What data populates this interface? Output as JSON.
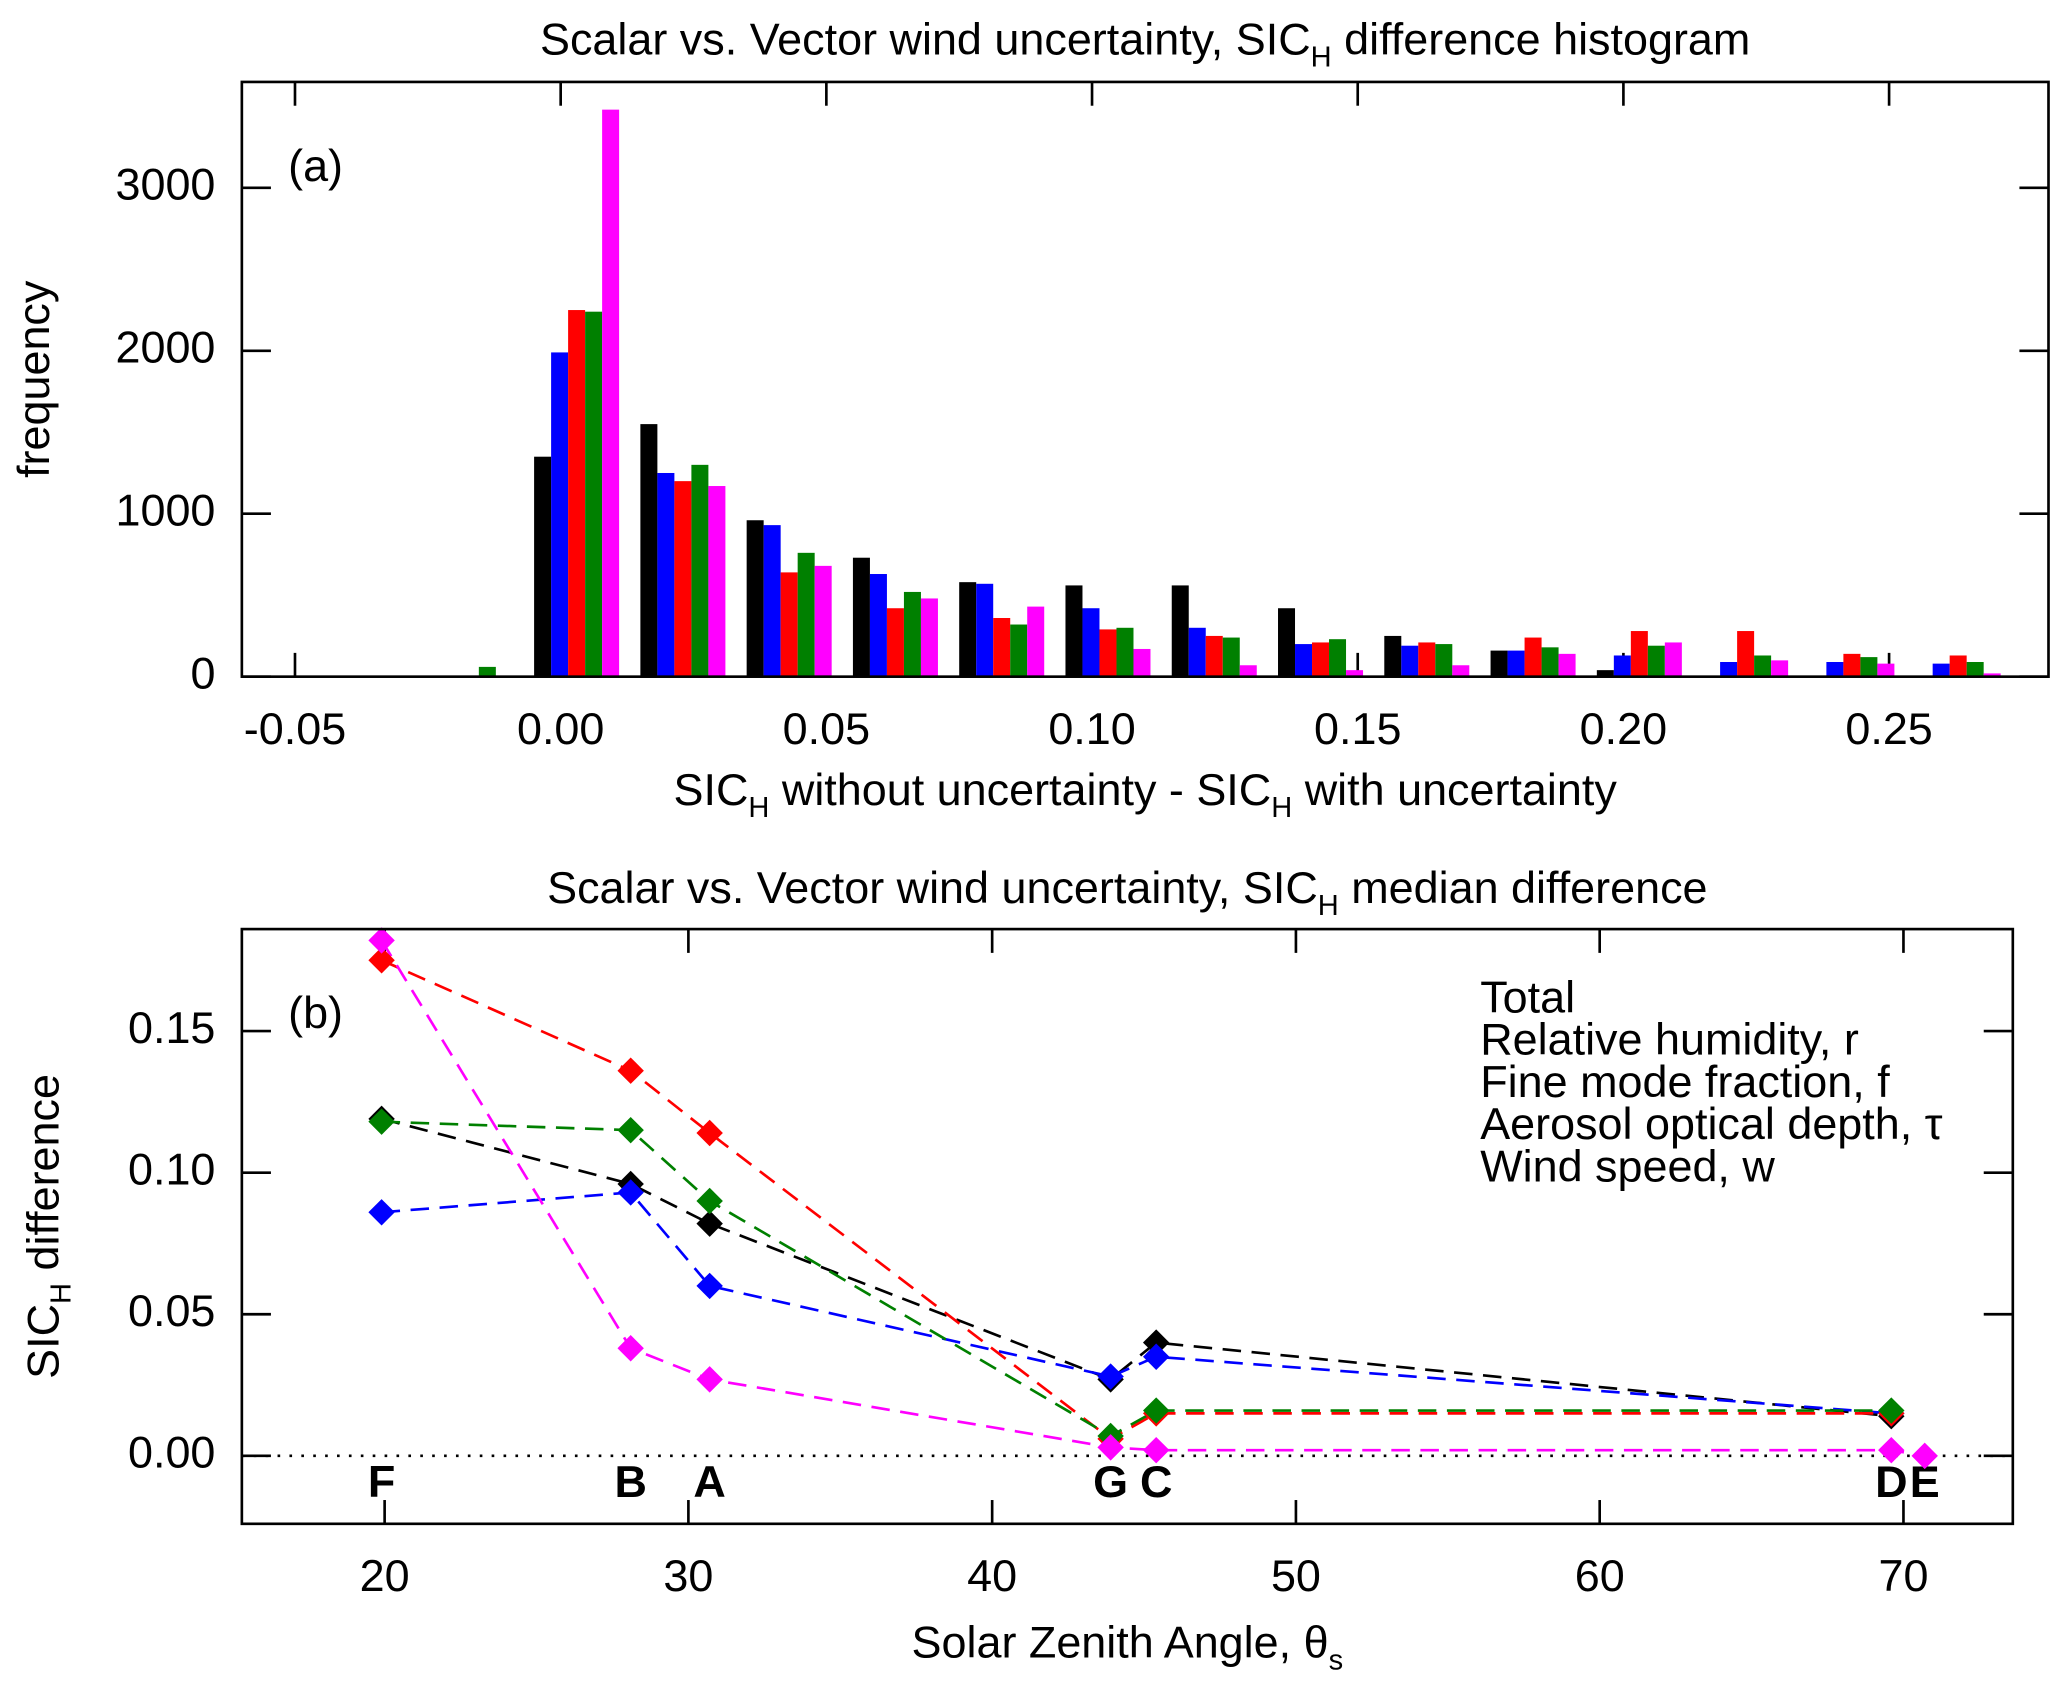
{
  "chart_data": [
    {
      "type": "bar",
      "title": [
        "Scalar vs. Vector wind uncertainty, SIC",
        "H",
        " difference histogram"
      ],
      "xlabel": [
        "SIC",
        "H",
        " without uncertainty - SIC",
        "H",
        " with uncertainty"
      ],
      "ylabel": "frequency",
      "panel_label": "(a)",
      "x": [
        -0.02,
        0,
        0.02,
        0.04,
        0.06,
        0.08,
        0.1,
        0.12,
        0.14,
        0.16,
        0.18,
        0.2,
        0.22,
        0.24,
        0.26
      ],
      "series": [
        {
          "name": "Total",
          "color": "#000000",
          "values": [
            0,
            1350,
            1550,
            960,
            730,
            580,
            560,
            560,
            420,
            250,
            160,
            40,
            0,
            0,
            0
          ]
        },
        {
          "name": "Relative humidity, r",
          "color": "#0000ff",
          "values": [
            5,
            1990,
            1250,
            930,
            630,
            570,
            420,
            300,
            200,
            190,
            160,
            130,
            90,
            90,
            80
          ]
        },
        {
          "name": "Fine mode fraction, f",
          "color": "#ff0000",
          "values": [
            0,
            2250,
            1200,
            640,
            420,
            360,
            290,
            250,
            210,
            210,
            240,
            280,
            280,
            140,
            130
          ]
        },
        {
          "name": "Aerosol optical depth, τ",
          "color": "#008000",
          "values": [
            60,
            2240,
            1300,
            760,
            520,
            320,
            300,
            240,
            230,
            200,
            180,
            190,
            130,
            120,
            90
          ]
        },
        {
          "name": "Wind speed, w",
          "color": "#ff00ff",
          "values": [
            0,
            3480,
            1170,
            680,
            480,
            430,
            170,
            70,
            40,
            70,
            140,
            210,
            100,
            80,
            20
          ]
        }
      ],
      "xlim": [
        -0.06,
        0.28
      ],
      "xticks": [
        {
          "value": -0.05,
          "label": "-0.05"
        },
        {
          "value": 0,
          "label": "0.00"
        },
        {
          "value": 0.05,
          "label": "0.05"
        },
        {
          "value": 0.1,
          "label": "0.10"
        },
        {
          "value": 0.15,
          "label": "0.15"
        },
        {
          "value": 0.2,
          "label": "0.20"
        },
        {
          "value": 0.25,
          "label": "0.25"
        }
      ],
      "ylim": [
        0,
        3650
      ],
      "yticks": [
        0,
        1000,
        2000,
        3000
      ]
    },
    {
      "type": "line",
      "title": [
        "Scalar vs. Vector wind uncertainty, SIC",
        "H",
        " median difference"
      ],
      "xlabel": [
        "Solar Zenith Angle, θ",
        "s"
      ],
      "ylabel": [
        "SIC",
        "H",
        " difference"
      ],
      "panel_label": "(b)",
      "x": [
        19.9,
        28.1,
        30.7,
        43.9,
        45.4,
        69.6,
        70.7
      ],
      "point_labels": [
        "F",
        "B",
        "A",
        "G",
        "C",
        "D",
        "E"
      ],
      "series": [
        {
          "name": "Total",
          "color": "#000000",
          "values": [
            0.119,
            0.096,
            0.082,
            0.027,
            0.04,
            0.014,
            null
          ]
        },
        {
          "name": "Relative humidity, r",
          "color": "#0000ff",
          "values": [
            0.086,
            0.093,
            0.06,
            0.028,
            0.035,
            0.015,
            null
          ]
        },
        {
          "name": "Fine mode fraction, f",
          "color": "#ff0000",
          "values": [
            0.175,
            0.136,
            0.114,
            0.006,
            0.015,
            0.015,
            null
          ]
        },
        {
          "name": "Aerosol optical depth, τ",
          "color": "#008000",
          "values": [
            0.118,
            0.115,
            0.09,
            0.007,
            0.016,
            0.016,
            null
          ]
        },
        {
          "name": "Wind speed, w",
          "color": "#ff00ff",
          "values": [
            0.182,
            0.038,
            0.027,
            0.003,
            0.002,
            0.002,
            0
          ]
        }
      ],
      "xlim": [
        15.3,
        73.6
      ],
      "xticks": [
        20,
        30,
        40,
        50,
        60,
        70
      ],
      "ylim": [
        -0.024,
        0.186
      ],
      "yticks": [
        {
          "value": 0,
          "label": "0.00"
        },
        {
          "value": 0.05,
          "label": "0.05"
        },
        {
          "value": 0.1,
          "label": "0.10"
        },
        {
          "value": 0.15,
          "label": "0.15"
        }
      ],
      "zero_line": true,
      "legend": "upper right"
    }
  ]
}
